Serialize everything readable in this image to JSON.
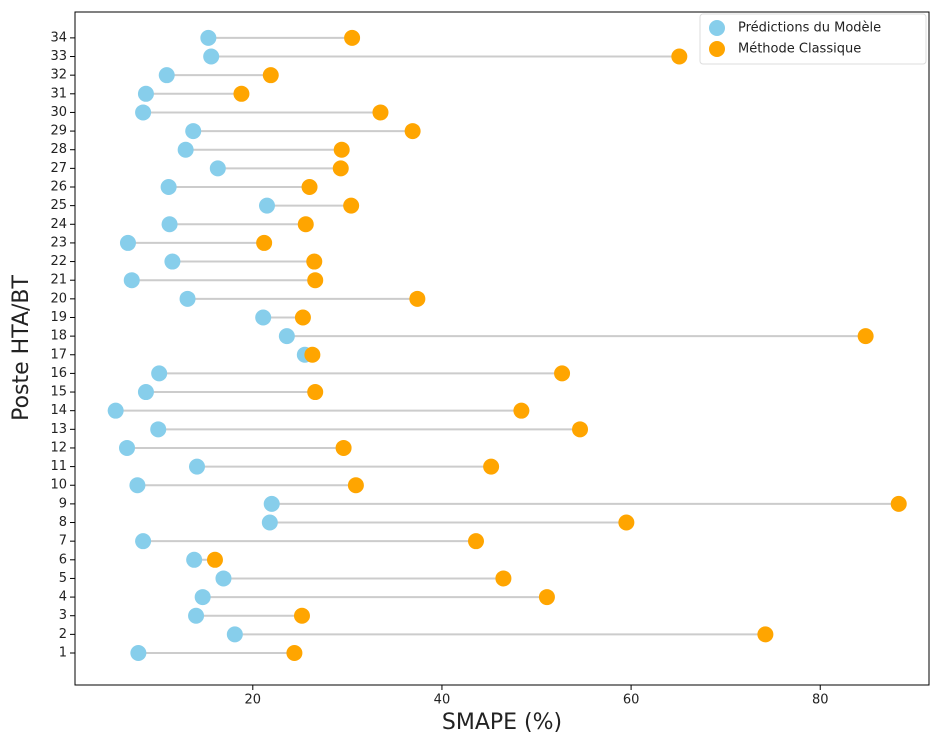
{
  "chart_data": {
    "type": "dumbbell",
    "xlabel": "SMAPE (%)",
    "ylabel": "Poste HTA/BT",
    "categories": [
      "1",
      "2",
      "3",
      "4",
      "5",
      "6",
      "7",
      "8",
      "9",
      "10",
      "11",
      "12",
      "13",
      "14",
      "15",
      "16",
      "17",
      "18",
      "19",
      "20",
      "21",
      "22",
      "23",
      "24",
      "25",
      "26",
      "27",
      "28",
      "29",
      "30",
      "31",
      "32",
      "33",
      "34"
    ],
    "series": [
      {
        "name": "Prédictions du Modèle",
        "color": "#87ceeb",
        "values": [
          7.9,
          18.1,
          14.0,
          14.7,
          16.9,
          13.8,
          8.4,
          21.8,
          22.0,
          7.8,
          14.1,
          6.7,
          10.0,
          5.5,
          8.7,
          10.1,
          25.5,
          23.6,
          21.1,
          13.1,
          7.2,
          11.5,
          6.8,
          11.2,
          21.5,
          11.1,
          16.3,
          12.9,
          13.7,
          8.4,
          8.7,
          10.9,
          15.6,
          15.3
        ]
      },
      {
        "name": "Méthode Classique",
        "color": "#ffa500",
        "values": [
          24.4,
          74.2,
          25.2,
          51.1,
          46.5,
          16.0,
          43.6,
          59.5,
          88.3,
          30.9,
          45.2,
          29.6,
          54.6,
          48.4,
          26.6,
          52.7,
          26.3,
          84.8,
          25.3,
          37.4,
          26.6,
          26.5,
          21.2,
          25.6,
          30.4,
          26.0,
          29.3,
          29.4,
          36.9,
          33.5,
          18.8,
          21.9,
          65.1,
          30.5
        ]
      }
    ],
    "connector_color": "#cccccc",
    "xlim": [
      1.2,
      91.5
    ],
    "xticks": [
      20,
      40,
      60,
      80
    ],
    "legend": "upper right"
  }
}
